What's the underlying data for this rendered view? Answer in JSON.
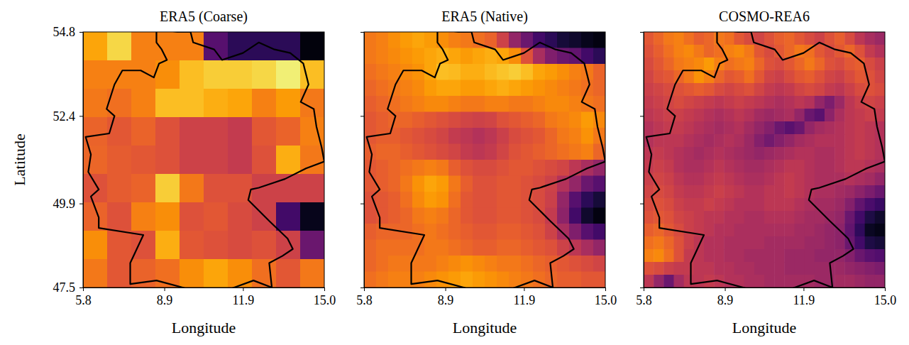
{
  "chart_data": [
    {
      "type": "heatmap",
      "title": "ERA5 (Coarse)",
      "x_label": "Longitude",
      "y_label": "Latitude",
      "xlim": [
        5.8,
        15.0
      ],
      "ylim": [
        47.5,
        54.8
      ],
      "xticks": [
        5.8,
        8.9,
        11.9,
        {
          "value": 15,
          "label": "15.0"
        }
      ],
      "yticks": [
        47.5,
        49.9,
        52.4,
        54.8
      ],
      "color": "inferno",
      "zlim": [
        0,
        100
      ],
      "cells": [
        [
          80,
          90,
          72,
          72,
          72,
          25,
          15,
          15,
          15,
          2
        ],
        [
          72,
          72,
          72,
          75,
          85,
          88,
          88,
          90,
          95,
          85
        ],
        [
          70,
          68,
          72,
          85,
          85,
          82,
          80,
          72,
          78,
          70
        ],
        [
          65,
          62,
          65,
          60,
          55,
          55,
          52,
          62,
          65,
          72
        ],
        [
          66,
          63,
          62,
          60,
          55,
          55,
          52,
          60,
          82,
          70
        ],
        [
          60,
          63,
          65,
          88,
          70,
          60,
          60,
          55,
          55,
          55
        ],
        [
          65,
          60,
          72,
          75,
          60,
          62,
          58,
          55,
          20,
          5
        ],
        [
          75,
          62,
          60,
          82,
          62,
          60,
          58,
          60,
          55,
          30
        ],
        [
          70,
          62,
          65,
          68,
          75,
          80,
          75,
          68,
          62,
          70
        ]
      ]
    },
    {
      "type": "heatmap",
      "title": "ERA5 (Native)",
      "x_label": "Longitude",
      "tick_labels": "x",
      "xlim": [
        5.8,
        15.0
      ],
      "ylim": [
        47.5,
        54.8
      ],
      "xticks": [
        5.8,
        8.9,
        11.9,
        {
          "value": 15,
          "label": "15.0"
        }
      ],
      "yticks": [
        47.5,
        49.9,
        52.4,
        54.8
      ],
      "color": "inferno",
      "zlim": [
        0,
        100
      ],
      "cells": [
        [
          70,
          72,
          75,
          78,
          80,
          78,
          75,
          72,
          70,
          68,
          65,
          55,
          40,
          30,
          20,
          15,
          10,
          8,
          5,
          3
        ],
        [
          70,
          72,
          74,
          76,
          78,
          80,
          82,
          80,
          78,
          80,
          82,
          80,
          75,
          60,
          45,
          35,
          30,
          28,
          20,
          15
        ],
        [
          68,
          70,
          72,
          74,
          76,
          80,
          85,
          84,
          82,
          82,
          84,
          86,
          88,
          85,
          80,
          78,
          75,
          72,
          70,
          65
        ],
        [
          66,
          68,
          70,
          72,
          74,
          78,
          80,
          80,
          78,
          78,
          80,
          82,
          80,
          78,
          76,
          74,
          72,
          70,
          68,
          66
        ],
        [
          64,
          66,
          68,
          70,
          72,
          74,
          74,
          72,
          70,
          70,
          72,
          72,
          70,
          70,
          72,
          74,
          74,
          72,
          70,
          68
        ],
        [
          62,
          64,
          66,
          66,
          64,
          62,
          60,
          58,
          56,
          55,
          56,
          60,
          62,
          64,
          66,
          70,
          72,
          74,
          78,
          74
        ],
        [
          62,
          64,
          64,
          62,
          60,
          58,
          56,
          52,
          50,
          48,
          50,
          54,
          58,
          60,
          62,
          66,
          70,
          72,
          76,
          70
        ],
        [
          64,
          66,
          66,
          64,
          62,
          60,
          58,
          56,
          52,
          50,
          52,
          56,
          60,
          62,
          64,
          66,
          68,
          70,
          72,
          66
        ],
        [
          62,
          64,
          66,
          68,
          70,
          72,
          70,
          64,
          60,
          58,
          58,
          60,
          62,
          62,
          60,
          58,
          56,
          50,
          45,
          40
        ],
        [
          62,
          64,
          66,
          70,
          76,
          80,
          78,
          70,
          64,
          60,
          60,
          62,
          62,
          60,
          58,
          55,
          48,
          40,
          30,
          25
        ],
        [
          60,
          62,
          64,
          68,
          74,
          78,
          76,
          68,
          62,
          60,
          60,
          62,
          62,
          60,
          58,
          54,
          40,
          25,
          15,
          10
        ],
        [
          60,
          62,
          64,
          66,
          70,
          72,
          70,
          66,
          62,
          60,
          60,
          62,
          62,
          60,
          58,
          52,
          38,
          20,
          8,
          3
        ],
        [
          64,
          66,
          66,
          66,
          68,
          70,
          68,
          66,
          64,
          62,
          62,
          64,
          64,
          62,
          60,
          55,
          45,
          35,
          25,
          20
        ],
        [
          66,
          68,
          68,
          68,
          68,
          70,
          70,
          68,
          66,
          64,
          64,
          66,
          66,
          64,
          62,
          60,
          55,
          50,
          45,
          40
        ],
        [
          66,
          68,
          70,
          70,
          70,
          70,
          72,
          74,
          76,
          74,
          72,
          70,
          70,
          68,
          66,
          64,
          62,
          60,
          58,
          56
        ],
        [
          68,
          70,
          72,
          72,
          72,
          74,
          76,
          78,
          80,
          78,
          76,
          74,
          72,
          70,
          68,
          66,
          64,
          64,
          62,
          62
        ]
      ]
    },
    {
      "type": "heatmap",
      "title": "COSMO-REA6",
      "x_label": "Longitude",
      "tick_labels": "x",
      "xlim": [
        5.8,
        15.0
      ],
      "ylim": [
        47.5,
        54.8
      ],
      "xticks": [
        5.8,
        8.9,
        11.9,
        {
          "value": 15,
          "label": "15.0"
        }
      ],
      "yticks": [
        47.5,
        49.9,
        52.4,
        54.8
      ],
      "color": "inferno",
      "zlim": [
        0,
        100
      ],
      "cells": [
        [
          62,
          66,
          70,
          72,
          68,
          64,
          66,
          70,
          68,
          62,
          58,
          56,
          60,
          64,
          66,
          62,
          58,
          55,
          60,
          64,
          58,
          50,
          45,
          42
        ],
        [
          60,
          64,
          68,
          72,
          74,
          70,
          66,
          68,
          72,
          74,
          70,
          62,
          58,
          62,
          66,
          70,
          68,
          62,
          58,
          62,
          66,
          60,
          52,
          48
        ],
        [
          58,
          62,
          66,
          70,
          72,
          74,
          78,
          72,
          68,
          70,
          72,
          66,
          60,
          58,
          62,
          66,
          70,
          66,
          60,
          58,
          62,
          64,
          58,
          54
        ],
        [
          56,
          60,
          62,
          66,
          70,
          76,
          72,
          66,
          62,
          64,
          68,
          62,
          56,
          54,
          58,
          62,
          64,
          60,
          56,
          54,
          58,
          62,
          60,
          56
        ],
        [
          54,
          56,
          58,
          60,
          62,
          64,
          62,
          58,
          56,
          58,
          60,
          56,
          52,
          50,
          52,
          56,
          58,
          56,
          52,
          50,
          54,
          58,
          60,
          58
        ],
        [
          52,
          54,
          56,
          58,
          56,
          54,
          52,
          50,
          52,
          54,
          52,
          50,
          48,
          46,
          48,
          50,
          48,
          40,
          34,
          42,
          50,
          54,
          56,
          54
        ],
        [
          50,
          52,
          54,
          54,
          52,
          50,
          48,
          46,
          48,
          50,
          48,
          44,
          42,
          44,
          46,
          40,
          30,
          26,
          38,
          46,
          50,
          52,
          54,
          52
        ],
        [
          48,
          50,
          52,
          52,
          50,
          48,
          46,
          44,
          46,
          48,
          44,
          40,
          36,
          30,
          26,
          30,
          40,
          44,
          46,
          48,
          50,
          52,
          50,
          48
        ],
        [
          48,
          50,
          50,
          50,
          48,
          46,
          44,
          46,
          48,
          46,
          42,
          36,
          32,
          36,
          40,
          44,
          46,
          48,
          48,
          48,
          50,
          52,
          50,
          48
        ],
        [
          50,
          52,
          50,
          48,
          46,
          44,
          46,
          48,
          46,
          44,
          42,
          40,
          42,
          44,
          46,
          48,
          48,
          46,
          46,
          48,
          50,
          52,
          50,
          48
        ],
        [
          52,
          54,
          52,
          48,
          46,
          46,
          48,
          50,
          48,
          46,
          44,
          44,
          46,
          48,
          50,
          50,
          48,
          46,
          46,
          48,
          50,
          50,
          48,
          46
        ],
        [
          54,
          56,
          54,
          50,
          48,
          48,
          50,
          52,
          50,
          48,
          46,
          46,
          48,
          50,
          52,
          50,
          48,
          46,
          46,
          46,
          48,
          46,
          44,
          40
        ],
        [
          56,
          58,
          56,
          52,
          50,
          50,
          52,
          54,
          52,
          50,
          48,
          48,
          50,
          50,
          52,
          50,
          48,
          46,
          46,
          44,
          42,
          38,
          34,
          30
        ],
        [
          58,
          60,
          58,
          54,
          52,
          52,
          54,
          52,
          50,
          48,
          48,
          48,
          50,
          50,
          50,
          48,
          46,
          44,
          44,
          42,
          36,
          28,
          22,
          18
        ],
        [
          60,
          62,
          60,
          56,
          54,
          52,
          50,
          50,
          48,
          48,
          46,
          46,
          48,
          48,
          48,
          46,
          44,
          44,
          42,
          40,
          30,
          20,
          12,
          8
        ],
        [
          64,
          66,
          62,
          58,
          54,
          52,
          50,
          48,
          48,
          46,
          46,
          46,
          46,
          46,
          46,
          44,
          44,
          42,
          40,
          38,
          28,
          16,
          6,
          4
        ],
        [
          68,
          70,
          66,
          60,
          54,
          50,
          48,
          48,
          46,
          46,
          46,
          46,
          44,
          44,
          44,
          44,
          42,
          42,
          40,
          38,
          30,
          20,
          12,
          10
        ],
        [
          72,
          74,
          68,
          60,
          52,
          50,
          48,
          48,
          46,
          46,
          44,
          44,
          44,
          44,
          42,
          42,
          42,
          40,
          40,
          40,
          36,
          30,
          26,
          24
        ],
        [
          60,
          58,
          54,
          52,
          52,
          50,
          50,
          48,
          48,
          46,
          46,
          44,
          44,
          44,
          42,
          42,
          42,
          42,
          42,
          42,
          40,
          38,
          36,
          34
        ],
        [
          50,
          40,
          30,
          44,
          50,
          50,
          52,
          50,
          48,
          48,
          46,
          46,
          44,
          44,
          44,
          44,
          44,
          42,
          42,
          44,
          44,
          42,
          40,
          40
        ]
      ]
    }
  ]
}
